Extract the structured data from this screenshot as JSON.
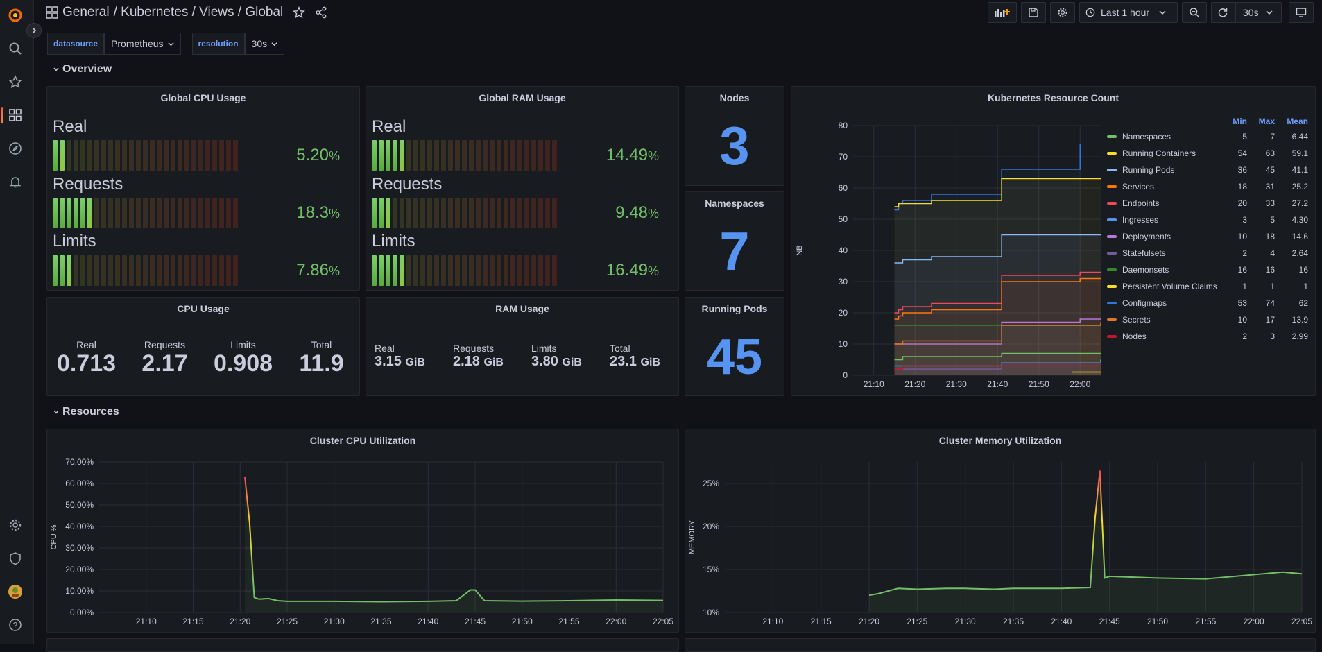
{
  "breadcrumb": {
    "root": "General",
    "path": "/ Kubernetes / Views / Global"
  },
  "toolbar": {
    "time_range": "Last 1 hour",
    "refresh": "30s"
  },
  "variables": [
    {
      "label": "datasource",
      "value": "Prometheus"
    },
    {
      "label": "resolution",
      "value": "30s"
    }
  ],
  "rows": {
    "overview": "Overview",
    "resources": "Resources"
  },
  "cpu_gauge": {
    "title": "Global CPU Usage",
    "items": [
      {
        "label": "Real",
        "value": "5.20",
        "unit": "%",
        "fraction": 0.052
      },
      {
        "label": "Requests",
        "value": "18.3",
        "unit": "%",
        "fraction": 0.183
      },
      {
        "label": "Limits",
        "value": "7.86",
        "unit": "%",
        "fraction": 0.0786
      }
    ]
  },
  "ram_gauge": {
    "title": "Global RAM Usage",
    "items": [
      {
        "label": "Real",
        "value": "14.49",
        "unit": "%",
        "fraction": 0.1449
      },
      {
        "label": "Requests",
        "value": "9.48",
        "unit": "%",
        "fraction": 0.0948
      },
      {
        "label": "Limits",
        "value": "16.49",
        "unit": "%",
        "fraction": 0.1649
      }
    ]
  },
  "nodes": {
    "title": "Nodes",
    "value": "3"
  },
  "namespaces": {
    "title": "Namespaces",
    "value": "7"
  },
  "running_pods": {
    "title": "Running Pods",
    "value": "45"
  },
  "cpu_usage": {
    "title": "CPU Usage",
    "items": [
      {
        "label": "Real",
        "value": "0.713"
      },
      {
        "label": "Requests",
        "value": "2.17"
      },
      {
        "label": "Limits",
        "value": "0.908"
      },
      {
        "label": "Total",
        "value": "11.9"
      }
    ]
  },
  "ram_usage": {
    "title": "RAM Usage",
    "items": [
      {
        "label": "Real",
        "value": "3.15",
        "unit": "GiB"
      },
      {
        "label": "Requests",
        "value": "2.18",
        "unit": "GiB"
      },
      {
        "label": "Limits",
        "value": "3.80",
        "unit": "GiB"
      },
      {
        "label": "Total",
        "value": "23.1",
        "unit": "GiB"
      }
    ]
  },
  "resource_count": {
    "title": "Kubernetes Resource Count",
    "legend_headers": [
      "Min",
      "Max",
      "Mean"
    ],
    "series": [
      {
        "name": "Namespaces",
        "color": "#73bf69",
        "min": "5",
        "max": "7",
        "mean": "6.44"
      },
      {
        "name": "Running Containers",
        "color": "#fade2a",
        "min": "54",
        "max": "63",
        "mean": "59.1"
      },
      {
        "name": "Running Pods",
        "color": "#8ab8ff",
        "min": "36",
        "max": "45",
        "mean": "41.1"
      },
      {
        "name": "Services",
        "color": "#ff780a",
        "min": "18",
        "max": "31",
        "mean": "25.2"
      },
      {
        "name": "Endpoints",
        "color": "#f2495c",
        "min": "20",
        "max": "33",
        "mean": "27.2"
      },
      {
        "name": "Ingresses",
        "color": "#5794f2",
        "min": "3",
        "max": "5",
        "mean": "4.30"
      },
      {
        "name": "Deployments",
        "color": "#b877d9",
        "min": "10",
        "max": "18",
        "mean": "14.6"
      },
      {
        "name": "Statefulsets",
        "color": "#705da0",
        "min": "2",
        "max": "4",
        "mean": "2.64"
      },
      {
        "name": "Daemonsets",
        "color": "#37872d",
        "min": "16",
        "max": "16",
        "mean": "16"
      },
      {
        "name": "Persistent Volume Claims",
        "color": "#fade2a",
        "min": "1",
        "max": "1",
        "mean": "1"
      },
      {
        "name": "Configmaps",
        "color": "#3274d9",
        "min": "53",
        "max": "74",
        "mean": "62"
      },
      {
        "name": "Secrets",
        "color": "#e0752d",
        "min": "10",
        "max": "17",
        "mean": "13.9"
      },
      {
        "name": "Nodes",
        "color": "#c4162a",
        "min": "2",
        "max": "3",
        "mean": "2.99"
      }
    ]
  },
  "chart_data": [
    {
      "type": "line",
      "title": "Kubernetes Resource Count",
      "ylabel": "NB",
      "x_ticks": [
        "21:10",
        "21:20",
        "21:30",
        "21:40",
        "21:50",
        "22:00"
      ],
      "y_ticks": [
        "0",
        "10",
        "20",
        "30",
        "40",
        "50",
        "60",
        "70",
        "80"
      ],
      "ylim": [
        0,
        80
      ],
      "xlim": [
        "21:05",
        "22:05"
      ],
      "series": [
        {
          "name": "Configmaps",
          "color": "#3274d9",
          "x": [
            "21:15",
            "21:16",
            "21:17",
            "21:23",
            "21:24",
            "21:40",
            "21:41",
            "21:59",
            "22:00"
          ],
          "y": [
            53,
            55,
            56,
            56,
            58,
            58,
            66,
            66,
            74
          ]
        },
        {
          "name": "Running Containers",
          "color": "#fade2a",
          "x": [
            "21:15",
            "21:16",
            "21:17",
            "21:23",
            "21:24",
            "21:40",
            "21:41",
            "22:05"
          ],
          "y": [
            54,
            55,
            55,
            55,
            56,
            56,
            63,
            63
          ]
        },
        {
          "name": "Running Pods",
          "color": "#8ab8ff",
          "x": [
            "21:15",
            "21:16",
            "21:17",
            "21:23",
            "21:24",
            "21:40",
            "21:41",
            "22:05"
          ],
          "y": [
            36,
            36,
            37,
            37,
            38,
            38,
            45,
            45
          ]
        },
        {
          "name": "Endpoints",
          "color": "#f2495c",
          "x": [
            "21:15",
            "21:16",
            "21:17",
            "21:23",
            "21:24",
            "21:40",
            "21:41",
            "21:59",
            "22:00",
            "22:05"
          ],
          "y": [
            20,
            21,
            22,
            22,
            23,
            23,
            32,
            32,
            33,
            33
          ]
        },
        {
          "name": "Services",
          "color": "#ff780a",
          "x": [
            "21:15",
            "21:16",
            "21:17",
            "21:23",
            "21:24",
            "21:40",
            "21:41",
            "21:59",
            "22:00",
            "22:05"
          ],
          "y": [
            18,
            19,
            20,
            20,
            21,
            21,
            30,
            30,
            31,
            31
          ]
        },
        {
          "name": "Deployments",
          "color": "#b877d9",
          "x": [
            "21:15",
            "21:40",
            "21:41",
            "21:59",
            "22:00",
            "22:05"
          ],
          "y": [
            10,
            10,
            17,
            17,
            18,
            18
          ]
        },
        {
          "name": "Daemonsets",
          "color": "#37872d",
          "x": [
            "21:15",
            "22:05"
          ],
          "y": [
            16,
            16
          ]
        },
        {
          "name": "Secrets",
          "color": "#e0752d",
          "x": [
            "21:15",
            "21:16",
            "21:17",
            "21:40",
            "21:41",
            "22:05"
          ],
          "y": [
            10,
            10,
            11,
            11,
            16,
            17
          ]
        },
        {
          "name": "Namespaces",
          "color": "#73bf69",
          "x": [
            "21:15",
            "21:16",
            "21:17",
            "21:40",
            "21:41",
            "22:05"
          ],
          "y": [
            5,
            5,
            6,
            6,
            7,
            7
          ]
        },
        {
          "name": "Ingresses",
          "color": "#5794f2",
          "x": [
            "21:15",
            "21:40",
            "21:41",
            "22:05"
          ],
          "y": [
            3,
            3,
            4,
            5
          ]
        },
        {
          "name": "Statefulsets",
          "color": "#705da0",
          "x": [
            "21:15",
            "21:40",
            "21:41",
            "22:05"
          ],
          "y": [
            2,
            2,
            4,
            4
          ]
        },
        {
          "name": "Nodes",
          "color": "#c4162a",
          "x": [
            "21:15",
            "21:16",
            "21:17",
            "22:05"
          ],
          "y": [
            2,
            2,
            3,
            3
          ]
        },
        {
          "name": "Persistent Volume Claims",
          "color": "#fade2a",
          "x": [
            "21:58",
            "22:05"
          ],
          "y": [
            1,
            1
          ]
        }
      ]
    },
    {
      "type": "area",
      "title": "Cluster CPU Utilization",
      "ylabel": "CPU %",
      "x_ticks": [
        "21:10",
        "21:15",
        "21:20",
        "21:25",
        "21:30",
        "21:35",
        "21:40",
        "21:45",
        "21:50",
        "21:55",
        "22:00",
        "22:05"
      ],
      "y_ticks": [
        "0.00%",
        "10.00%",
        "20.00%",
        "30.00%",
        "40.00%",
        "50.00%",
        "60.00%",
        "70.00%"
      ],
      "ylim": [
        0,
        70
      ],
      "xlim": [
        "21:05",
        "22:05"
      ],
      "x": [
        "21:20.5",
        "21:21",
        "21:21.5",
        "21:22",
        "21:23",
        "21:24",
        "21:25",
        "21:30",
        "21:35",
        "21:40",
        "21:43",
        "21:44.5",
        "21:45",
        "21:46",
        "21:50",
        "21:55",
        "22:00",
        "22:05"
      ],
      "y": [
        63,
        42,
        7,
        6.2,
        6.5,
        5.5,
        5.2,
        5.2,
        5.0,
        5.2,
        5.5,
        10.5,
        10.5,
        5.5,
        5.3,
        5.5,
        5.8,
        5.6
      ]
    },
    {
      "type": "area",
      "title": "Cluster Memory Utilization",
      "ylabel": "MEMORY",
      "x_ticks": [
        "21:10",
        "21:15",
        "21:20",
        "21:25",
        "21:30",
        "21:35",
        "21:40",
        "21:45",
        "21:50",
        "21:55",
        "22:00",
        "22:05"
      ],
      "y_ticks": [
        "10%",
        "15%",
        "20%",
        "25%"
      ],
      "ylim": [
        10,
        27.5
      ],
      "xlim": [
        "21:05",
        "22:05"
      ],
      "x": [
        "21:20",
        "21:21",
        "21:23",
        "21:25",
        "21:28",
        "21:30",
        "21:33",
        "21:35",
        "21:38",
        "21:40",
        "21:43",
        "21:43.5",
        "21:44",
        "21:44.5",
        "21:45",
        "21:50",
        "21:55",
        "22:00",
        "22:03",
        "22:05"
      ],
      "y": [
        12,
        12.2,
        12.8,
        12.7,
        12.8,
        12.8,
        12.7,
        12.8,
        12.8,
        12.8,
        12.9,
        21,
        26.5,
        14,
        14.2,
        14,
        13.9,
        14.4,
        14.7,
        14.5
      ]
    }
  ]
}
